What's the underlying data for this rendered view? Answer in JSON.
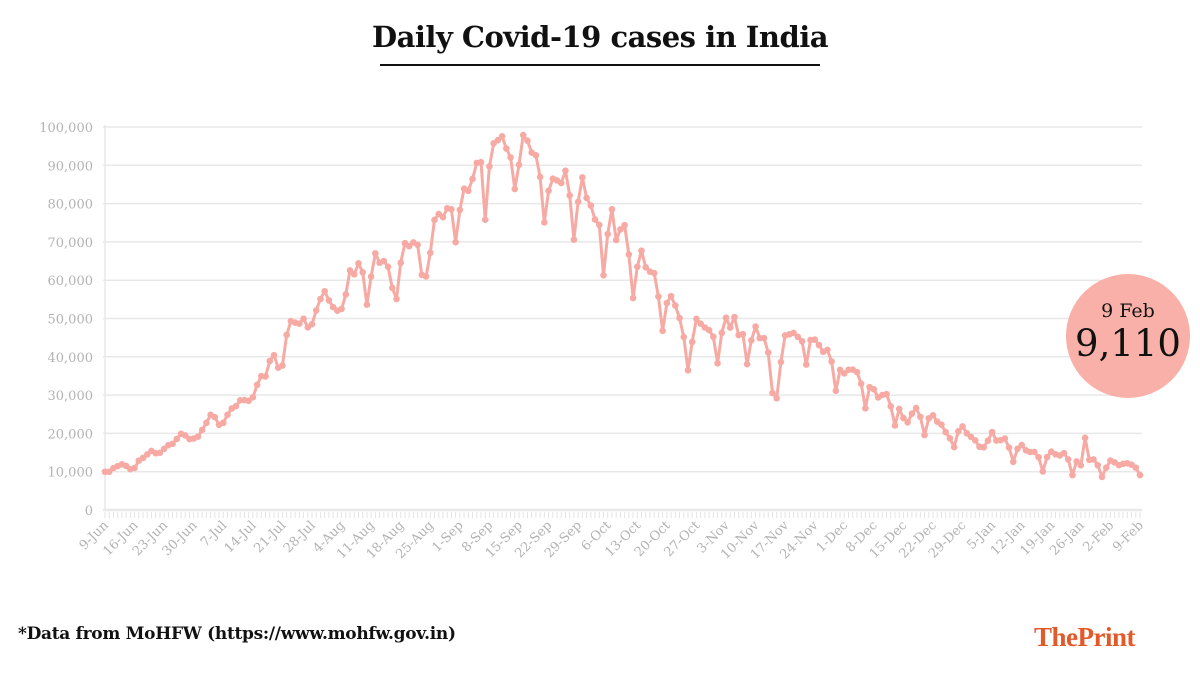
{
  "title": "Daily Covid-19 cases in India",
  "source_note": "*Data from MoHFW (https://www.mohfw.gov.in)",
  "logo": {
    "part1": "The",
    "part2": "Print"
  },
  "callout": {
    "date": "9 Feb",
    "value": "9,110",
    "color": "#f9b0a8"
  },
  "colors": {
    "line": "#f7aaa3",
    "grid": "#e8e8e8",
    "axis_text": "#b3b3b3",
    "logo": "#e2592a"
  },
  "chart_data": {
    "type": "line",
    "title": "Daily Covid-19 cases in India",
    "xlabel": "",
    "ylabel": "",
    "ylim": [
      0,
      100000
    ],
    "yticks": [
      0,
      10000,
      20000,
      30000,
      40000,
      50000,
      60000,
      70000,
      80000,
      90000,
      100000
    ],
    "ytick_labels": [
      "0",
      "10,000",
      "20,000",
      "30,000",
      "40,000",
      "50,000",
      "60,000",
      "70,000",
      "80,000",
      "90,000",
      "100,000"
    ],
    "xtick_labels": [
      "9-Jun",
      "16-Jun",
      "23-Jun",
      "30-Jun",
      "7-Jul",
      "14-Jul",
      "21-Jul",
      "28-Jul",
      "4-Aug",
      "11-Aug",
      "18-Aug",
      "25-Aug",
      "1-Sep",
      "8-Sep",
      "15-Sep",
      "22-Sep",
      "29-Sep",
      "6-Oct",
      "13-Oct",
      "20-Oct",
      "27-Oct",
      "3-Nov",
      "10-Nov",
      "17-Nov",
      "24-Nov",
      "1-Dec",
      "8-Dec",
      "15-Dec",
      "22-Dec",
      "29-Dec",
      "5-Jan",
      "12-Jan",
      "19-Jan",
      "26-Jan",
      "2-Feb",
      "9-Feb"
    ],
    "grid": true,
    "markers": true,
    "series_by_month": [
      {
        "month": "Jun",
        "first_day": 9,
        "values": [
          9985,
          9987,
          10956,
          11458,
          11929,
          11502,
          10667,
          10974,
          12881,
          13586,
          14516,
          15413,
          14821,
          14933,
          15968,
          16922,
          17296,
          18552,
          19906,
          19459,
          18522,
          18653
        ]
      },
      {
        "month": "Jul",
        "first_day": 1,
        "values": [
          19148,
          20903,
          22771,
          24850,
          24248,
          22252,
          22752,
          24879,
          26506,
          27114,
          28637,
          28701,
          28498,
          29429,
          32695,
          34956,
          34884,
          38902,
          40425,
          37148,
          37724,
          45720,
          49310,
          48916,
          48661,
          49931,
          47704,
          48513,
          52123,
          55079,
          57118
        ]
      },
      {
        "month": "Aug",
        "first_day": 1,
        "values": [
          54735,
          52972,
          52050,
          52509,
          56282,
          62538,
          61537,
          64399,
          62064,
          53601,
          60963,
          66999,
          64553,
          65002,
          63490,
          57981,
          55079,
          64531,
          69652,
          68898,
          69878,
          69239,
          61408,
          60975,
          67151,
          75760,
          77266,
          76472,
          78761,
          78512,
          69921
        ]
      },
      {
        "month": "Sep",
        "first_day": 1,
        "values": [
          78357,
          83883,
          83341,
          86432,
          90632,
          90802,
          75809,
          89706,
          95735,
          96551,
          97570,
          94372,
          92071,
          83809,
          90123,
          97894,
          96424,
          93337,
          92605,
          86961,
          75083,
          83347,
          86508,
          86052,
          85362,
          88600,
          82170,
          70589,
          80472,
          86821
        ]
      },
      {
        "month": "Oct",
        "first_day": 1,
        "values": [
          81484,
          79476,
          75829,
          74442,
          61267,
          72049,
          78524,
          70496,
          73272,
          74383,
          66732,
          55342,
          63509,
          67708,
          63371,
          62212,
          61871,
          55722,
          46790,
          54044,
          55838,
          53370,
          50129,
          45148,
          36470,
          43893,
          49881,
          48648,
          47638,
          46964,
          45230
        ]
      },
      {
        "month": "Nov",
        "first_day": 1,
        "values": [
          38310,
          46254,
          50210,
          47638,
          50356,
          45674,
          45903,
          38074,
          44281,
          47905,
          44879,
          44878,
          41100,
          30548,
          29163,
          38617,
          45576,
          45882,
          46232,
          45209,
          44059,
          37975,
          44376,
          44489,
          43082,
          41322,
          41810,
          38772,
          31118,
          36604
        ]
      },
      {
        "month": "Dec",
        "first_day": 1,
        "values": [
          35668,
          36594,
          36652,
          36011,
          32981,
          26567,
          32080,
          31521,
          29398,
          30006,
          30254,
          27071,
          22065,
          26382,
          24010,
          22890,
          25153,
          26624,
          24337,
          19556,
          23950,
          24712,
          23067,
          22273,
          20333,
          18732,
          16432,
          20550,
          21822,
          20035,
          19079
        ]
      },
      {
        "month": "Jan",
        "first_day": 1,
        "values": [
          18177,
          16504,
          16375,
          18088,
          20346,
          18139,
          18222,
          18645,
          16311,
          12584,
          15968,
          16946,
          15590,
          15144,
          15158,
          13788,
          10064,
          13823,
          15223,
          14545,
          14256,
          14849,
          13203,
          9102,
          12689,
          11666,
          18855,
          13083,
          13203,
          11686,
          8635
        ]
      },
      {
        "month": "Feb",
        "first_day": 1,
        "values": [
          11039,
          12899,
          12408,
          11713,
          12059,
          12194,
          11831,
          11067,
          9110
        ]
      }
    ]
  }
}
